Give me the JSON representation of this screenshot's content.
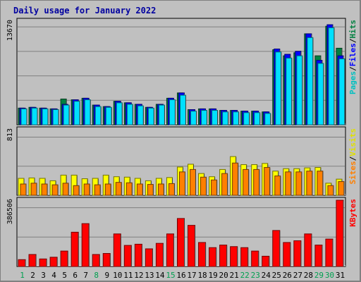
{
  "chart_data": {
    "type": "bar",
    "title": "Daily usage for January 2022",
    "categories": [
      "1",
      "2",
      "3",
      "4",
      "5",
      "6",
      "7",
      "8",
      "9",
      "10",
      "11",
      "12",
      "13",
      "14",
      "15",
      "16",
      "17",
      "18",
      "19",
      "20",
      "21",
      "22",
      "23",
      "24",
      "25",
      "26",
      "27",
      "28",
      "29",
      "30",
      "31"
    ],
    "weekend_days": [
      "1",
      "8",
      "15",
      "22",
      "23",
      "29",
      "30"
    ],
    "panels": [
      {
        "name": "top",
        "ymax": 13670,
        "ymax_label": "13670",
        "series": [
          {
            "name": "Hits",
            "color": "#008040",
            "values": [
              2200,
              2300,
              2200,
              2100,
              3400,
              3300,
              3500,
              2600,
              2400,
              3100,
              2900,
              2700,
              2300,
              2700,
              3500,
              4200,
              2000,
              2100,
              2100,
              1900,
              1900,
              1800,
              1800,
              1700,
              9900,
              9100,
              9500,
              12000,
              9100,
              13000,
              10100
            ]
          },
          {
            "name": "Files",
            "color": "#0000ff",
            "values": [
              2200,
              2300,
              2200,
              2100,
              2700,
              3300,
              3500,
              2600,
              2400,
              3100,
              2900,
              2700,
              2300,
              2700,
              3500,
              4200,
              2000,
              2100,
              2100,
              1900,
              1900,
              1800,
              1800,
              1700,
              10000,
              9300,
              9700,
              12000,
              8500,
              13200,
              9100
            ]
          },
          {
            "name": "Pages",
            "color": "#00e0ff",
            "values": [
              2100,
              2200,
              2100,
              2000,
              2600,
              3100,
              3300,
              2400,
              2300,
              2900,
              2700,
              2500,
              2200,
              2600,
              3300,
              3900,
              1800,
              1900,
              1900,
              1700,
              1700,
              1600,
              1600,
              1500,
              9600,
              8800,
              9100,
              11500,
              8100,
              12800,
              8700
            ]
          }
        ],
        "label_parts": [
          {
            "text": "Pages",
            "color": "#00c0c0"
          },
          {
            "text": "Files",
            "color": "#0000ff"
          },
          {
            "text": "Hits",
            "color": "#008040"
          }
        ]
      },
      {
        "name": "middle",
        "ymax": 813,
        "ymax_label": "813",
        "series": [
          {
            "name": "Visits",
            "color": "#ffff00",
            "values": [
              210,
              215,
              210,
              180,
              250,
              250,
              205,
              210,
              250,
              230,
              225,
              210,
              180,
              210,
              220,
              350,
              385,
              270,
              230,
              320,
              480,
              380,
              380,
              395,
              300,
              330,
              330,
              340,
              345,
              150,
              200
            ]
          },
          {
            "name": "Sites",
            "color": "#ff8000",
            "values": [
              140,
              150,
              140,
              130,
              150,
              120,
              140,
              130,
              140,
              160,
              155,
              140,
              135,
              140,
              145,
              290,
              320,
              225,
              190,
              270,
              400,
              320,
              320,
              345,
              240,
              290,
              290,
              300,
              300,
              120,
              170
            ]
          }
        ],
        "label_parts": [
          {
            "text": "Sites",
            "color": "#ff8000"
          },
          {
            "text": "Visits",
            "color": "#e0e000"
          }
        ]
      },
      {
        "name": "bottom",
        "ymax": 386506,
        "ymax_label": "386506",
        "series": [
          {
            "name": "KBytes",
            "color": "#ff0000",
            "values": [
              40000,
              70000,
              44000,
              54000,
              90000,
              200000,
              250000,
              70000,
              76000,
              190000,
              123000,
              130000,
              103000,
              135000,
              190000,
              280000,
              240000,
              140000,
              110000,
              125000,
              116000,
              110000,
              90000,
              60000,
              210000,
              140000,
              150000,
              190000,
              125000,
              160000,
              386506
            ]
          }
        ],
        "label_parts": [
          {
            "text": "KBytes",
            "color": "#ff0000"
          }
        ]
      }
    ]
  }
}
